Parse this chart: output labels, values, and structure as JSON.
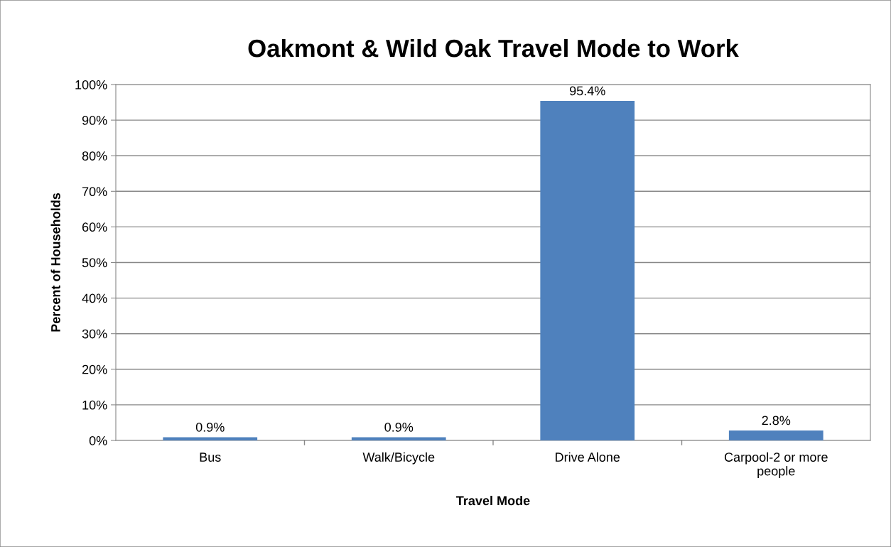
{
  "chart_data": {
    "type": "bar",
    "title": "Oakmont & Wild Oak Travel Mode to Work",
    "xlabel": "Travel Mode",
    "ylabel": "Percent of Households",
    "categories": [
      "Bus",
      "Walk/Bicycle",
      "Drive Alone",
      "Carpool-2 or more\npeople"
    ],
    "values": [
      0.9,
      0.9,
      95.4,
      2.8
    ],
    "value_labels": [
      "0.9%",
      "0.9%",
      "95.4%",
      "2.8%"
    ],
    "color": "#4f81bd",
    "ylim": [
      0,
      100
    ],
    "yticks": [
      {
        "value": 0,
        "label": "0%"
      },
      {
        "value": 10,
        "label": "10%"
      },
      {
        "value": 20,
        "label": "20%"
      },
      {
        "value": 30,
        "label": "30%"
      },
      {
        "value": 40,
        "label": "40%"
      },
      {
        "value": 50,
        "label": "50%"
      },
      {
        "value": 60,
        "label": "60%"
      },
      {
        "value": 70,
        "label": "70%"
      },
      {
        "value": 80,
        "label": "80%"
      },
      {
        "value": 90,
        "label": "90%"
      },
      {
        "value": 100,
        "label": "100%"
      }
    ],
    "grid": "y"
  }
}
